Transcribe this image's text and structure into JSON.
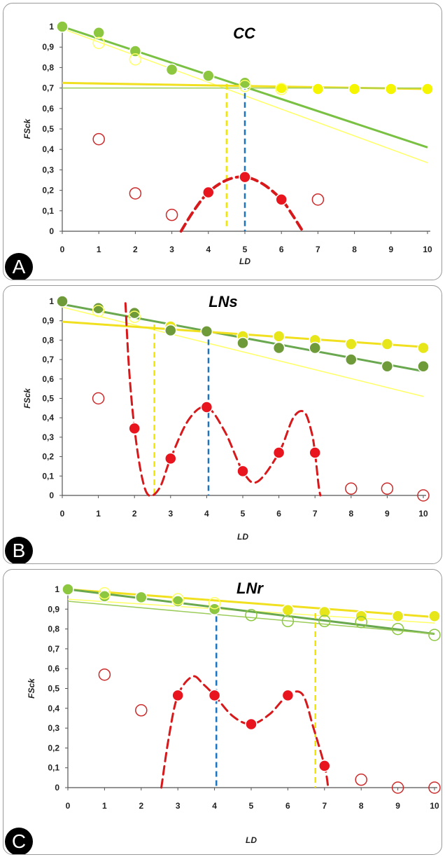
{
  "chart_data": [
    {
      "panel_label": "A",
      "type": "scatter",
      "title": "CC",
      "xlabel": "LD",
      "ylabel": "FSck",
      "xlim": [
        0,
        10
      ],
      "ylim": [
        0,
        1
      ],
      "x_ticks": [
        "0",
        "1",
        "2",
        "3",
        "4",
        "5",
        "6",
        "7",
        "8",
        "9",
        "10"
      ],
      "y_ticks": [
        "0",
        "0,1",
        "0,2",
        "0,3",
        "0,4",
        "0,5",
        "0,6",
        "0,7",
        "0,8",
        "0,9",
        "1"
      ],
      "series": [
        {
          "kind": "scatter",
          "marker": "filled",
          "color": "#8dc63f",
          "points": [
            [
              0,
              1
            ],
            [
              1,
              0.97
            ],
            [
              2,
              0.88
            ],
            [
              3,
              0.79
            ],
            [
              4,
              0.76
            ],
            [
              5,
              0.725
            ]
          ]
        },
        {
          "kind": "scatter",
          "marker": "filled",
          "color": "#f5f500",
          "points": [
            [
              6,
              0.7
            ],
            [
              7,
              0.695
            ],
            [
              8,
              0.695
            ],
            [
              9,
              0.695
            ],
            [
              10,
              0.695
            ]
          ]
        },
        {
          "kind": "scatter",
          "marker": "hollow",
          "color": "#ffff66",
          "points": [
            [
              1,
              0.92
            ],
            [
              2,
              0.84
            ],
            [
              5,
              0.71
            ],
            [
              6,
              0.695
            ]
          ]
        },
        {
          "kind": "scatter",
          "marker": "filled",
          "color": "#e8141e",
          "points": [
            [
              4,
              0.19
            ],
            [
              5,
              0.265
            ],
            [
              6,
              0.155
            ]
          ]
        },
        {
          "kind": "scatter",
          "marker": "hollow",
          "color": "#cc2a2a",
          "points": [
            [
              1,
              0.45
            ],
            [
              2,
              0.185
            ],
            [
              3,
              0.08
            ],
            [
              7,
              0.155
            ]
          ]
        },
        {
          "kind": "line",
          "style": "solid",
          "color": "#7ac143",
          "width": 3,
          "points": [
            [
              0,
              1
            ],
            [
              10,
              0.41
            ]
          ]
        },
        {
          "kind": "line",
          "style": "solid",
          "color": "#ffff66",
          "width": 1.5,
          "points": [
            [
              0,
              0.99
            ],
            [
              10,
              0.335
            ]
          ]
        },
        {
          "kind": "line",
          "style": "solid",
          "color": "#f0e020",
          "width": 3,
          "points": [
            [
              0,
              0.725
            ],
            [
              10,
              0.695
            ]
          ]
        },
        {
          "kind": "line",
          "style": "solid",
          "color": "#9ccc5a",
          "width": 1.5,
          "points": [
            [
              0,
              0.7
            ],
            [
              10,
              0.7
            ]
          ]
        },
        {
          "kind": "line",
          "style": "dashed",
          "color": "#f2e600",
          "width": 2.5,
          "points": [
            [
              4.5,
              0.72
            ],
            [
              4.5,
              0.02
            ]
          ]
        },
        {
          "kind": "line",
          "style": "dashed",
          "color": "#1e73be",
          "width": 2.5,
          "points": [
            [
              5,
              0.72
            ],
            [
              5,
              0
            ]
          ]
        },
        {
          "kind": "curve",
          "style": "dashed",
          "color": "#d7191c",
          "width": 4,
          "points": [
            [
              3.25,
              0
            ],
            [
              3.6,
              0.1
            ],
            [
              4,
              0.19
            ],
            [
              4.5,
              0.25
            ],
            [
              5,
              0.265
            ],
            [
              5.5,
              0.23
            ],
            [
              6,
              0.155
            ],
            [
              6.3,
              0.08
            ],
            [
              6.55,
              0.01
            ]
          ]
        }
      ]
    },
    {
      "panel_label": "B",
      "type": "scatter",
      "title": "LNs",
      "xlabel": "LD",
      "ylabel": "FSck",
      "xlim": [
        0,
        10
      ],
      "ylim": [
        0,
        1
      ],
      "x_ticks": [
        "0",
        "1",
        "2",
        "3",
        "4",
        "5",
        "6",
        "7",
        "8",
        "9",
        "10"
      ],
      "y_ticks": [
        "0",
        "0,1",
        "0,2",
        "0,3",
        "0,4",
        "0,5",
        "0,6",
        "0,7",
        "0,8",
        "0,9",
        "1"
      ],
      "series": [
        {
          "kind": "scatter",
          "marker": "filled",
          "color": "#e6e61a",
          "points": [
            [
              3,
              0.87
            ],
            [
              4,
              0.85
            ],
            [
              5,
              0.82
            ],
            [
              6,
              0.82
            ],
            [
              7,
              0.8
            ],
            [
              8,
              0.78
            ],
            [
              9,
              0.78
            ],
            [
              10,
              0.76
            ]
          ]
        },
        {
          "kind": "scatter",
          "marker": "filled",
          "color": "#6e9a3a",
          "points": [
            [
              0,
              1
            ],
            [
              1,
              0.965
            ],
            [
              2,
              0.94
            ],
            [
              3,
              0.85
            ],
            [
              4,
              0.845
            ],
            [
              5,
              0.785
            ],
            [
              6,
              0.76
            ],
            [
              7,
              0.76
            ],
            [
              8,
              0.7
            ],
            [
              9,
              0.665
            ],
            [
              10,
              0.665
            ]
          ]
        },
        {
          "kind": "scatter",
          "marker": "hollow",
          "color": "#ffff66",
          "points": [
            [
              1,
              0.95
            ],
            [
              2,
              0.92
            ]
          ]
        },
        {
          "kind": "scatter",
          "marker": "filled",
          "color": "#e8141e",
          "points": [
            [
              2,
              0.345
            ],
            [
              3,
              0.19
            ],
            [
              4,
              0.455
            ],
            [
              5,
              0.125
            ],
            [
              6,
              0.22
            ],
            [
              7,
              0.22
            ]
          ]
        },
        {
          "kind": "scatter",
          "marker": "hollow",
          "color": "#cc2a2a",
          "points": [
            [
              1,
              0.5
            ],
            [
              8,
              0.035
            ],
            [
              9,
              0.035
            ],
            [
              10,
              0.0
            ]
          ]
        },
        {
          "kind": "line",
          "style": "solid",
          "color": "#6aa84f",
          "width": 3,
          "points": [
            [
              0,
              0.985
            ],
            [
              10,
              0.64
            ]
          ]
        },
        {
          "kind": "line",
          "style": "solid",
          "color": "#ffff66",
          "width": 1.5,
          "points": [
            [
              0,
              0.97
            ],
            [
              10,
              0.51
            ]
          ]
        },
        {
          "kind": "line",
          "style": "solid",
          "color": "#f0e020",
          "width": 3,
          "points": [
            [
              0,
              0.895
            ],
            [
              10,
              0.765
            ]
          ]
        },
        {
          "kind": "line",
          "style": "dashed",
          "color": "#f2e600",
          "width": 2.5,
          "points": [
            [
              2.55,
              0.88
            ],
            [
              2.55,
              0
            ]
          ]
        },
        {
          "kind": "line",
          "style": "dashed",
          "color": "#1e73be",
          "width": 2.5,
          "points": [
            [
              4.05,
              0.85
            ],
            [
              4.05,
              0
            ]
          ]
        },
        {
          "kind": "curve",
          "style": "dashed",
          "color": "#d7191c",
          "width": 3,
          "points": [
            [
              1.75,
              0.99
            ],
            [
              1.85,
              0.65
            ],
            [
              2,
              0.345
            ],
            [
              2.2,
              0.1
            ],
            [
              2.4,
              0
            ],
            [
              2.7,
              0.04
            ],
            [
              3,
              0.19
            ],
            [
              3.5,
              0.39
            ],
            [
              4,
              0.455
            ],
            [
              4.5,
              0.33
            ],
            [
              5,
              0.125
            ],
            [
              5.4,
              0.07
            ],
            [
              6,
              0.22
            ],
            [
              6.4,
              0.4
            ],
            [
              6.7,
              0.43
            ],
            [
              6.9,
              0.33
            ],
            [
              7,
              0.22
            ],
            [
              7.1,
              0.05
            ],
            [
              7.15,
              0
            ]
          ]
        }
      ]
    },
    {
      "panel_label": "C",
      "type": "scatter",
      "title": "LNr",
      "xlabel": "LD",
      "ylabel": "FSck",
      "xlim": [
        0,
        10
      ],
      "ylim": [
        0,
        1
      ],
      "x_ticks": [
        "0",
        "1",
        "2",
        "3",
        "4",
        "5",
        "6",
        "7",
        "8",
        "9",
        "10"
      ],
      "y_ticks": [
        "0",
        "0,1",
        "0,2",
        "0,3",
        "0,4",
        "0,5",
        "0,6",
        "0,7",
        "0,8",
        "0,9",
        "1"
      ],
      "series": [
        {
          "kind": "scatter",
          "marker": "filled",
          "color": "#8dc63f",
          "points": [
            [
              0,
              1
            ],
            [
              1,
              0.965
            ],
            [
              2,
              0.96
            ],
            [
              3,
              0.94
            ],
            [
              4,
              0.9
            ]
          ]
        },
        {
          "kind": "scatter",
          "marker": "filled",
          "color": "#e6e61a",
          "points": [
            [
              6,
              0.895
            ],
            [
              7,
              0.885
            ],
            [
              8,
              0.865
            ],
            [
              9,
              0.865
            ],
            [
              10,
              0.865
            ]
          ]
        },
        {
          "kind": "scatter",
          "marker": "hollow",
          "color": "#ffff66",
          "points": [
            [
              1,
              0.98
            ],
            [
              3,
              0.95
            ],
            [
              4,
              0.93
            ]
          ]
        },
        {
          "kind": "scatter",
          "marker": "hollow",
          "color": "#8dc63f",
          "points": [
            [
              5,
              0.87
            ],
            [
              6,
              0.84
            ],
            [
              7,
              0.84
            ],
            [
              8,
              0.835
            ],
            [
              9,
              0.8
            ],
            [
              10,
              0.77
            ]
          ]
        },
        {
          "kind": "scatter",
          "marker": "filled",
          "color": "#e8141e",
          "points": [
            [
              3,
              0.465
            ],
            [
              4,
              0.465
            ],
            [
              5,
              0.32
            ],
            [
              6,
              0.465
            ],
            [
              7,
              0.11
            ]
          ]
        },
        {
          "kind": "scatter",
          "marker": "hollow",
          "color": "#cc2a2a",
          "points": [
            [
              1,
              0.57
            ],
            [
              2,
              0.39
            ],
            [
              8,
              0.04
            ],
            [
              9,
              0.0
            ],
            [
              10,
              0.0
            ]
          ]
        },
        {
          "kind": "line",
          "style": "solid",
          "color": "#f0e020",
          "width": 3,
          "points": [
            [
              0,
              1
            ],
            [
              10,
              0.86
            ]
          ]
        },
        {
          "kind": "line",
          "style": "solid",
          "color": "#ffff66",
          "width": 1.5,
          "points": [
            [
              0,
              0.95
            ],
            [
              10,
              0.83
            ]
          ]
        },
        {
          "kind": "line",
          "style": "solid",
          "color": "#6aa84f",
          "width": 3,
          "points": [
            [
              0,
              1
            ],
            [
              10,
              0.775
            ]
          ]
        },
        {
          "kind": "line",
          "style": "solid",
          "color": "#9ccc5a",
          "width": 1.5,
          "points": [
            [
              0,
              0.94
            ],
            [
              10,
              0.775
            ]
          ]
        },
        {
          "kind": "line",
          "style": "dashed",
          "color": "#1e73be",
          "width": 2.5,
          "points": [
            [
              4.05,
              0.91
            ],
            [
              4.05,
              0
            ]
          ]
        },
        {
          "kind": "line",
          "style": "dashed",
          "color": "#f2e600",
          "width": 2.5,
          "points": [
            [
              6.75,
              0.88
            ],
            [
              6.75,
              0
            ]
          ]
        },
        {
          "kind": "curve",
          "style": "dashed",
          "color": "#d7191c",
          "width": 3,
          "points": [
            [
              2.55,
              0
            ],
            [
              2.75,
              0.25
            ],
            [
              3,
              0.465
            ],
            [
              3.4,
              0.56
            ],
            [
              3.7,
              0.52
            ],
            [
              4,
              0.465
            ],
            [
              4.5,
              0.36
            ],
            [
              5,
              0.32
            ],
            [
              5.5,
              0.37
            ],
            [
              6,
              0.465
            ],
            [
              6.4,
              0.47
            ],
            [
              6.7,
              0.3
            ],
            [
              7,
              0.11
            ],
            [
              7.1,
              0
            ]
          ]
        }
      ]
    }
  ]
}
